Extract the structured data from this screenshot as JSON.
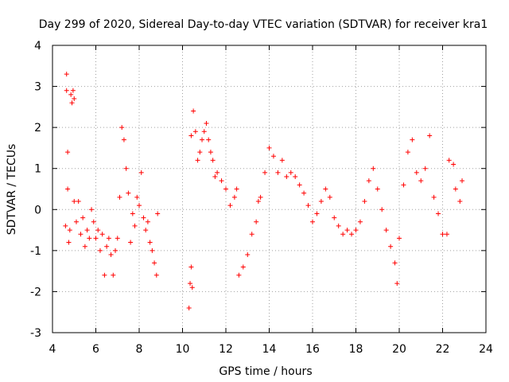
{
  "chart_data": {
    "type": "scatter",
    "title": "Day 299 of 2020, Sidereal Day-to-day VTEC variation (SDTVAR) for receiver kra1",
    "xlabel": "GPS time / hours",
    "ylabel": "SDTVAR / TECUs",
    "xlim": [
      4,
      24
    ],
    "ylim": [
      -3,
      4
    ],
    "xticks": [
      "4",
      "6",
      "8",
      "10",
      "12",
      "14",
      "16",
      "18",
      "20",
      "22",
      "24"
    ],
    "yticks": [
      "-3",
      "-2",
      "-1",
      "0",
      "1",
      "2",
      "3",
      "4"
    ],
    "grid": true,
    "marker": "+",
    "color": "#ff0000",
    "series": [
      {
        "name": "kra1 SDTVAR",
        "points": [
          [
            4.6,
            -0.4
          ],
          [
            4.65,
            3.3
          ],
          [
            4.65,
            2.9
          ],
          [
            4.7,
            1.4
          ],
          [
            4.7,
            0.5
          ],
          [
            4.75,
            -0.8
          ],
          [
            4.8,
            -0.5
          ],
          [
            4.85,
            2.8
          ],
          [
            4.9,
            2.6
          ],
          [
            4.95,
            2.9
          ],
          [
            5.0,
            2.7
          ],
          [
            5.0,
            0.2
          ],
          [
            5.1,
            -0.3
          ],
          [
            5.2,
            0.2
          ],
          [
            5.3,
            -0.6
          ],
          [
            5.4,
            -0.2
          ],
          [
            5.5,
            -0.9
          ],
          [
            5.6,
            -0.5
          ],
          [
            5.7,
            -0.7
          ],
          [
            5.8,
            0.0
          ],
          [
            5.9,
            -0.3
          ],
          [
            6.0,
            -0.7
          ],
          [
            6.1,
            -0.5
          ],
          [
            6.2,
            -1.0
          ],
          [
            6.3,
            -0.6
          ],
          [
            6.4,
            -1.6
          ],
          [
            6.5,
            -0.9
          ],
          [
            6.6,
            -0.7
          ],
          [
            6.7,
            -1.1
          ],
          [
            6.8,
            -1.6
          ],
          [
            6.9,
            -1.0
          ],
          [
            7.0,
            -0.7
          ],
          [
            7.1,
            0.3
          ],
          [
            7.2,
            2.0
          ],
          [
            7.3,
            1.7
          ],
          [
            7.4,
            1.0
          ],
          [
            7.5,
            0.4
          ],
          [
            7.6,
            -0.8
          ],
          [
            7.7,
            -0.1
          ],
          [
            7.8,
            -0.4
          ],
          [
            7.9,
            0.3
          ],
          [
            8.0,
            0.1
          ],
          [
            8.1,
            0.9
          ],
          [
            8.2,
            -0.2
          ],
          [
            8.3,
            -0.5
          ],
          [
            8.4,
            -0.3
          ],
          [
            8.5,
            -0.8
          ],
          [
            8.6,
            -1.0
          ],
          [
            8.7,
            -1.3
          ],
          [
            8.8,
            -1.6
          ],
          [
            8.85,
            -0.1
          ],
          [
            10.3,
            -2.4
          ],
          [
            10.35,
            -1.8
          ],
          [
            10.4,
            -1.4
          ],
          [
            10.45,
            -1.9
          ],
          [
            10.4,
            1.8
          ],
          [
            10.5,
            2.4
          ],
          [
            10.6,
            1.9
          ],
          [
            10.7,
            1.2
          ],
          [
            10.8,
            1.4
          ],
          [
            10.9,
            1.7
          ],
          [
            11.0,
            1.9
          ],
          [
            11.1,
            2.1
          ],
          [
            11.2,
            1.7
          ],
          [
            11.3,
            1.4
          ],
          [
            11.4,
            1.2
          ],
          [
            11.5,
            0.8
          ],
          [
            11.6,
            0.9
          ],
          [
            11.8,
            0.7
          ],
          [
            12.0,
            0.5
          ],
          [
            12.2,
            0.1
          ],
          [
            12.4,
            0.3
          ],
          [
            12.5,
            0.5
          ],
          [
            12.6,
            -1.6
          ],
          [
            12.8,
            -1.4
          ],
          [
            13.0,
            -1.1
          ],
          [
            13.2,
            -0.6
          ],
          [
            13.4,
            -0.3
          ],
          [
            13.5,
            0.2
          ],
          [
            13.6,
            0.3
          ],
          [
            13.8,
            0.9
          ],
          [
            14.0,
            1.5
          ],
          [
            14.2,
            1.3
          ],
          [
            14.4,
            0.9
          ],
          [
            14.6,
            1.2
          ],
          [
            14.8,
            0.8
          ],
          [
            15.0,
            0.9
          ],
          [
            15.2,
            0.8
          ],
          [
            15.4,
            0.6
          ],
          [
            15.6,
            0.4
          ],
          [
            15.8,
            0.1
          ],
          [
            16.0,
            -0.3
          ],
          [
            16.2,
            -0.1
          ],
          [
            16.4,
            0.2
          ],
          [
            16.6,
            0.5
          ],
          [
            16.8,
            0.3
          ],
          [
            17.0,
            -0.2
          ],
          [
            17.2,
            -0.4
          ],
          [
            17.4,
            -0.6
          ],
          [
            17.6,
            -0.5
          ],
          [
            17.8,
            -0.6
          ],
          [
            18.0,
            -0.5
          ],
          [
            18.2,
            -0.3
          ],
          [
            18.4,
            0.2
          ],
          [
            18.6,
            0.7
          ],
          [
            18.8,
            1.0
          ],
          [
            19.0,
            0.5
          ],
          [
            19.2,
            0.0
          ],
          [
            19.4,
            -0.5
          ],
          [
            19.6,
            -0.9
          ],
          [
            19.8,
            -1.3
          ],
          [
            19.9,
            -1.8
          ],
          [
            20.0,
            -0.7
          ],
          [
            20.2,
            0.6
          ],
          [
            20.4,
            1.4
          ],
          [
            20.6,
            1.7
          ],
          [
            20.8,
            0.9
          ],
          [
            21.0,
            0.7
          ],
          [
            21.2,
            1.0
          ],
          [
            21.4,
            1.8
          ],
          [
            21.6,
            0.3
          ],
          [
            21.8,
            -0.1
          ],
          [
            22.0,
            -0.6
          ],
          [
            22.2,
            -0.6
          ],
          [
            22.3,
            1.2
          ],
          [
            22.5,
            1.1
          ],
          [
            22.6,
            0.5
          ],
          [
            22.8,
            0.2
          ],
          [
            22.9,
            0.7
          ]
        ]
      }
    ]
  }
}
